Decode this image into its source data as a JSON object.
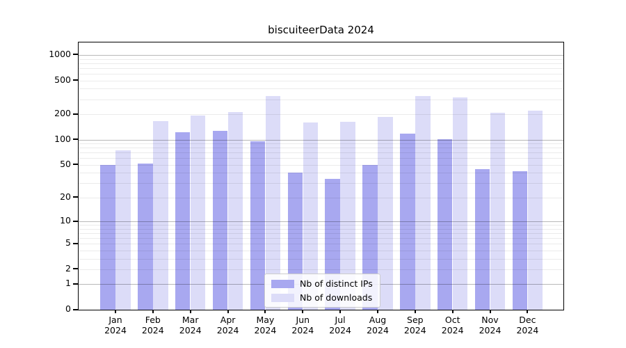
{
  "title": "biscuiteerData 2024",
  "chart_data": {
    "type": "bar",
    "title": "biscuiteerData 2024",
    "categories": [
      "Jan 2024",
      "Feb 2024",
      "Mar 2024",
      "Apr 2024",
      "May 2024",
      "Jun 2024",
      "Jul 2024",
      "Aug 2024",
      "Sep 2024",
      "Oct 2024",
      "Nov 2024",
      "Dec 2024"
    ],
    "series": [
      {
        "name": "Nb of distinct IPs",
        "color": "#a8a8f0",
        "values": [
          50,
          52,
          122,
          126,
          96,
          40,
          34,
          50,
          118,
          101,
          44,
          42
        ]
      },
      {
        "name": "Nb of downloads",
        "color": "#dcdcf8",
        "values": [
          74,
          166,
          193,
          210,
          330,
          158,
          164,
          184,
          330,
          315,
          208,
          220
        ]
      }
    ],
    "yscale": "log1p",
    "yticks": [
      0,
      1,
      2,
      5,
      10,
      20,
      50,
      100,
      200,
      500,
      1000
    ],
    "ylim": [
      0,
      1400
    ],
    "xlabel": "",
    "ylabel": "",
    "grid": "horizontal major+minor, drawn over bars",
    "legend_position": "lower center"
  },
  "colors": {
    "major_grid": "rgba(0,0,0,0.28)",
    "minor_grid": "rgba(0,0,0,0.08)",
    "spine": "#000000",
    "background": "#ffffff"
  }
}
